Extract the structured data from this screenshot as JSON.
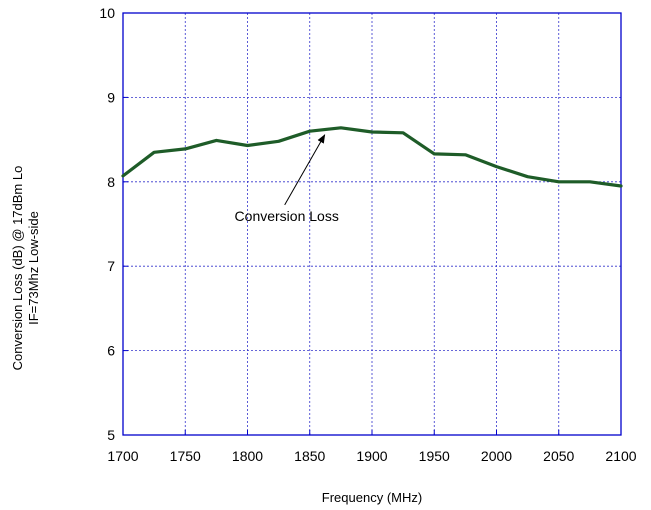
{
  "chart_data": {
    "type": "line",
    "title": "",
    "xlabel": "Frequency (MHz)",
    "ylabel_lines": [
      "Conversion Loss (dB) @ 17dBm Lo",
      "IF=73Mhz Low-side"
    ],
    "xlim": [
      1700,
      2100
    ],
    "ylim": [
      5,
      10
    ],
    "x_ticks": [
      1700,
      1750,
      1800,
      1850,
      1900,
      1950,
      2000,
      2050,
      2100
    ],
    "y_ticks": [
      5,
      6,
      7,
      8,
      9,
      10
    ],
    "grid": true,
    "grid_style": "dotted",
    "series": [
      {
        "color": "#1e5c28",
        "x": [
          1700,
          1725,
          1750,
          1775,
          1800,
          1825,
          1850,
          1875,
          1900,
          1925,
          1950,
          1975,
          2000,
          2025,
          2050,
          2075,
          2100
        ],
        "y": [
          8.07,
          8.35,
          8.39,
          8.49,
          8.43,
          8.48,
          8.6,
          8.64,
          8.59,
          8.58,
          8.33,
          8.32,
          8.18,
          8.06,
          8.0,
          8.0,
          7.95
        ]
      }
    ],
    "annotations": [
      {
        "text": "Conversion Loss",
        "target_x": 1862,
        "target_y": 8.58
      }
    ]
  }
}
